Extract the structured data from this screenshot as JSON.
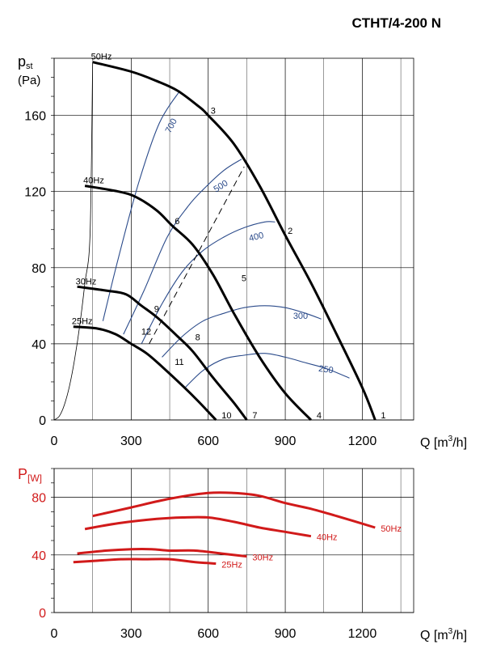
{
  "title": "CTHT/4-200 N",
  "chart_data": [
    {
      "type": "line",
      "ylabel_main": "p",
      "ylabel_sub": "st",
      "ylabel_unit": "(Pa)",
      "xlabel_prefix": "Q [m",
      "xlabel_sup": "3",
      "xlabel_suffix": "/h]",
      "xlim": [
        0,
        1400
      ],
      "ylim": [
        0,
        190
      ],
      "x_ticks": [
        0,
        300,
        600,
        900,
        1200
      ],
      "y_ticks": [
        0,
        40,
        80,
        120,
        160
      ],
      "grid": true,
      "series": [
        {
          "name": "50Hz",
          "x": [
            150,
            300,
            400,
            480,
            560,
            600,
            700,
            800,
            900,
            1000,
            1100,
            1200,
            1250
          ],
          "y": [
            188,
            183,
            178,
            173,
            165,
            160,
            145,
            123,
            97,
            72,
            45,
            17,
            0
          ]
        },
        {
          "name": "40Hz",
          "x": [
            120,
            250,
            320,
            400,
            460,
            540,
            620,
            700,
            800,
            900,
            1000
          ],
          "y": [
            123,
            120,
            117,
            110,
            102,
            92,
            76,
            56,
            33,
            14,
            0
          ]
        },
        {
          "name": "30Hz",
          "x": [
            90,
            200,
            280,
            340,
            400,
            480,
            540,
            620,
            700,
            750
          ],
          "y": [
            70,
            68,
            66,
            60,
            54,
            44,
            36,
            22,
            9,
            0
          ]
        },
        {
          "name": "25Hz",
          "x": [
            75,
            170,
            240,
            300,
            360,
            420,
            500,
            560,
            630
          ],
          "y": [
            49,
            48,
            45,
            40,
            35,
            28,
            18,
            10,
            0
          ]
        }
      ],
      "system_curve": {
        "x": [
          0,
          20,
          40,
          60,
          80,
          100,
          120,
          140,
          150
        ],
        "y": [
          0,
          2,
          8,
          18,
          32,
          50,
          72,
          98,
          188
        ]
      },
      "rpm_curves": [
        {
          "label": "700",
          "x": [
            190,
            250,
            330,
            410,
            490
          ],
          "y": [
            52,
            85,
            125,
            156,
            173
          ]
        },
        {
          "label": "500",
          "x": [
            270,
            350,
            440,
            520,
            580,
            660,
            730
          ],
          "y": [
            45,
            68,
            96,
            112,
            121,
            131,
            137
          ]
        },
        {
          "label": "400",
          "x": [
            340,
            420,
            500,
            580,
            660,
            740,
            820,
            860
          ],
          "y": [
            40,
            61,
            78,
            89,
            96,
            101,
            104,
            104
          ]
        },
        {
          "label": "300",
          "x": [
            420,
            500,
            580,
            660,
            740,
            820,
            900,
            980,
            1040
          ],
          "y": [
            33,
            44,
            52,
            56,
            59,
            60,
            59,
            56,
            53
          ]
        },
        {
          "label": "250",
          "x": [
            510,
            580,
            660,
            740,
            820,
            900,
            980,
            1060,
            1150
          ],
          "y": [
            17,
            26,
            32,
            34,
            35,
            33,
            30,
            27,
            22
          ]
        }
      ],
      "dashed_line": {
        "x": [
          370,
          740
        ],
        "y": [
          40,
          133
        ]
      },
      "points": [
        {
          "label": "1",
          "x": 1250,
          "y": 0
        },
        {
          "label": "2",
          "x": 900,
          "y": 97
        },
        {
          "label": "3",
          "x": 600,
          "y": 160
        },
        {
          "label": "4",
          "x": 1000,
          "y": 0
        },
        {
          "label": "5",
          "x": 720,
          "y": 72
        },
        {
          "label": "6",
          "x": 460,
          "y": 102
        },
        {
          "label": "7",
          "x": 750,
          "y": 0
        },
        {
          "label": "8",
          "x": 540,
          "y": 41
        },
        {
          "label": "9",
          "x": 380,
          "y": 56
        },
        {
          "label": "10",
          "x": 630,
          "y": 0
        },
        {
          "label": "11",
          "x": 460,
          "y": 28
        },
        {
          "label": "12",
          "x": 330,
          "y": 44
        }
      ]
    },
    {
      "type": "line",
      "ylabel_main": "P",
      "ylabel_sub": "[W]",
      "xlabel_prefix": "Q [m",
      "xlabel_sup": "3",
      "xlabel_suffix": "/h]",
      "xlim": [
        0,
        1400
      ],
      "ylim": [
        0,
        100
      ],
      "x_ticks": [
        0,
        300,
        600,
        900,
        1200
      ],
      "y_ticks": [
        0,
        40,
        80
      ],
      "grid": true,
      "color": "#d11a1a",
      "series": [
        {
          "name": "50Hz",
          "x": [
            150,
            300,
            450,
            600,
            700,
            800,
            900,
            1000,
            1100,
            1250
          ],
          "y": [
            67,
            73,
            79,
            83,
            83,
            81,
            76,
            72,
            67,
            59
          ]
        },
        {
          "name": "40Hz",
          "x": [
            120,
            250,
            400,
            500,
            600,
            700,
            800,
            900,
            1000
          ],
          "y": [
            58,
            62,
            65,
            66,
            66,
            63,
            59,
            56,
            53
          ]
        },
        {
          "name": "30Hz",
          "x": [
            90,
            200,
            300,
            380,
            450,
            550,
            650,
            750
          ],
          "y": [
            41,
            43,
            44,
            44,
            43,
            43,
            41,
            39
          ]
        },
        {
          "name": "25Hz",
          "x": [
            75,
            170,
            260,
            350,
            450,
            550,
            630
          ],
          "y": [
            35,
            36,
            37,
            37,
            37,
            35,
            34
          ]
        }
      ]
    }
  ]
}
